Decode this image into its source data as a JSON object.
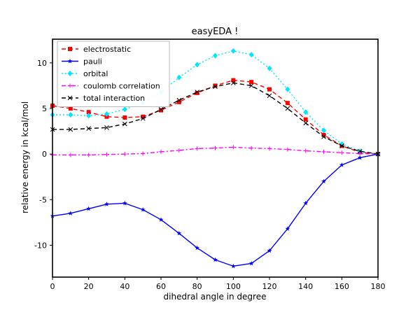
{
  "chart_data": {
    "type": "line",
    "title": "easyEDA !",
    "xlabel": "dihedral angle in degree",
    "ylabel": "relative energy in kcal/mol",
    "xlim": [
      0,
      180
    ],
    "ylim": [
      -13.5,
      12.6
    ],
    "xticks": [
      0,
      20,
      40,
      60,
      80,
      100,
      120,
      140,
      160,
      180
    ],
    "yticks": [
      -10,
      -5,
      0,
      5,
      10
    ],
    "grid": false,
    "legend_position": "upper-left",
    "x": [
      0,
      10,
      20,
      30,
      40,
      50,
      60,
      70,
      80,
      90,
      100,
      110,
      120,
      130,
      140,
      150,
      160,
      170,
      180
    ],
    "series": [
      {
        "name": "electrostatic",
        "color": "#ff0000",
        "line_color": "#ff0000",
        "dash": "6,4",
        "marker": "square",
        "values": [
          5.3,
          5.0,
          4.6,
          4.1,
          4.0,
          4.1,
          4.8,
          5.7,
          6.7,
          7.5,
          8.1,
          7.9,
          7.1,
          5.6,
          3.8,
          2.1,
          0.9,
          0.2,
          0.0
        ]
      },
      {
        "name": "pauli",
        "color": "#0000ff",
        "line_color": "#0000ff",
        "dash": "",
        "marker": "star",
        "values": [
          -6.8,
          -6.5,
          -6.0,
          -5.5,
          -5.4,
          -6.1,
          -7.2,
          -8.7,
          -10.3,
          -11.6,
          -12.3,
          -12.0,
          -10.6,
          -8.2,
          -5.4,
          -3.0,
          -1.2,
          -0.4,
          0.0
        ]
      },
      {
        "name": "orbital",
        "color": "#00e5ff",
        "line_color": "#00e5ff",
        "dash": "2,3",
        "marker": "diamond",
        "values": [
          4.3,
          4.3,
          4.2,
          4.4,
          4.9,
          5.6,
          6.8,
          8.4,
          9.8,
          10.8,
          11.3,
          10.9,
          9.4,
          7.1,
          4.6,
          2.6,
          1.1,
          0.3,
          0.0
        ]
      },
      {
        "name": "coulomb correlation",
        "color": "#ff00ff",
        "line_color": "#ff00ff",
        "dash": "6,3,2,3",
        "marker": "plus",
        "values": [
          -0.1,
          -0.1,
          -0.1,
          -0.05,
          0.0,
          0.05,
          0.25,
          0.4,
          0.6,
          0.65,
          0.75,
          0.65,
          0.6,
          0.5,
          0.35,
          0.25,
          0.15,
          0.05,
          0.0
        ]
      },
      {
        "name": "total interaction",
        "color": "#000000",
        "line_color": "#000000",
        "dash": "6,4",
        "marker": "x",
        "values": [
          2.7,
          2.7,
          2.8,
          2.9,
          3.3,
          3.9,
          4.9,
          5.9,
          6.8,
          7.4,
          7.8,
          7.5,
          6.4,
          5.0,
          3.4,
          1.9,
          0.9,
          0.3,
          0.0
        ]
      }
    ]
  }
}
